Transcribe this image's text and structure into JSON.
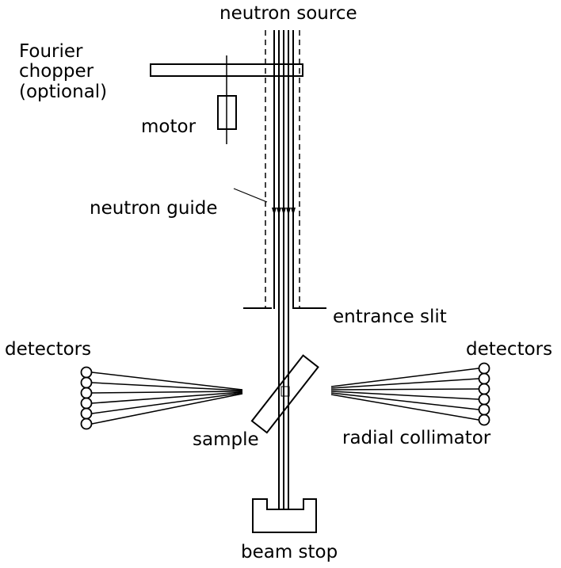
{
  "diagram": {
    "labels": {
      "neutron_source": "neutron source",
      "fourier": "Fourier",
      "chopper": "chopper",
      "optional": "(optional)",
      "motor": "motor",
      "neutron_guide": "neutron guide",
      "entrance_slit": "entrance slit",
      "detectors_left": "detectors",
      "detectors_right": "detectors",
      "sample": "sample",
      "radial_collimator": "radial collimator",
      "beam_stop": "beam stop"
    },
    "detector_count_per_bank": 6
  }
}
